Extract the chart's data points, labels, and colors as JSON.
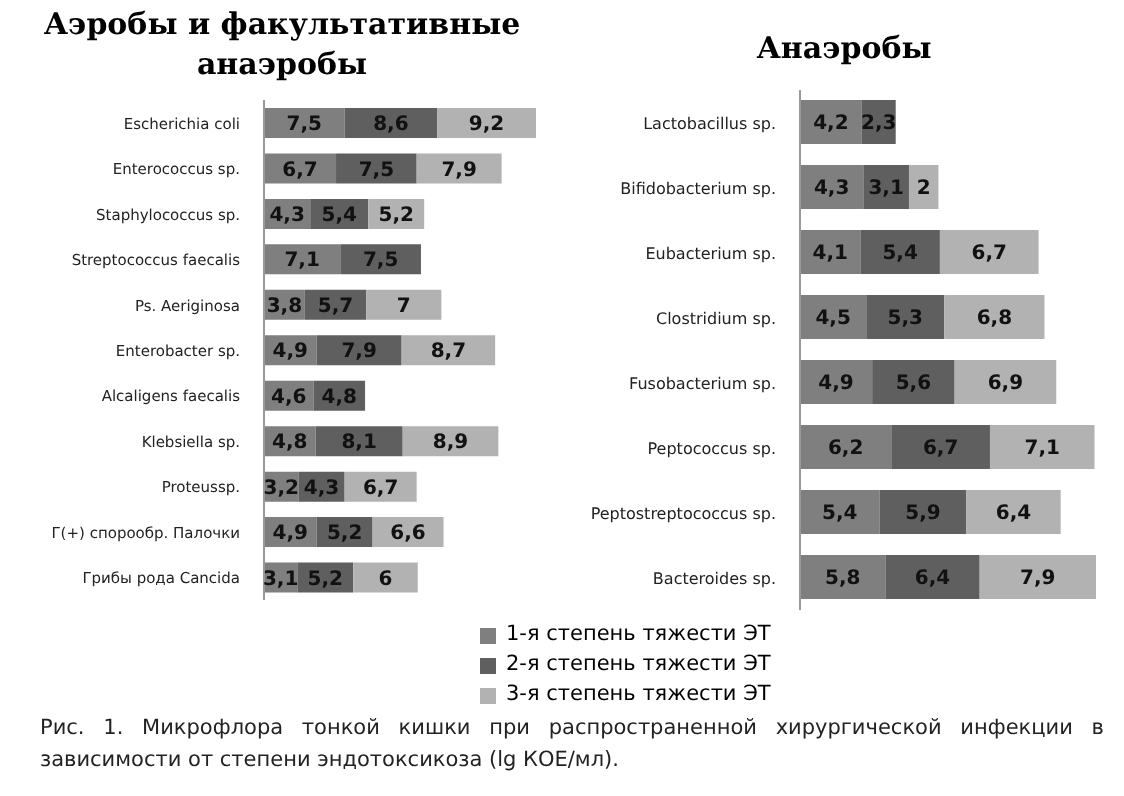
{
  "chart_data": [
    {
      "type": "bar",
      "orientation": "horizontal",
      "stacked": true,
      "title": "Аэробы и факультативные анаэробы",
      "categories": [
        "Escherichia coli",
        "Enterococcus sp.",
        "Staphylococcus sp.",
        "Streptococcus faecalis",
        "Ps. Aeriginosa",
        "Enterobacter sp.",
        "Alcaligens faecalis",
        "Klebsiella sp.",
        "Proteussp.",
        "Г(+) спорообр. Палочки",
        "Грибы рода Cancida"
      ],
      "tick_labels": "y",
      "legend": false,
      "series": [
        {
          "color": "#7f7f7f",
          "values": [
            7.5,
            6.7,
            4.3,
            7.1,
            3.8,
            4.9,
            4.6,
            4.8,
            3.2,
            4.9,
            3.1
          ],
          "value_labels": [
            "7,5",
            "6,7",
            "4,3",
            "7,1",
            "3,8",
            "4,9",
            "4,6",
            "4,8",
            "3,2",
            "4,9",
            "3,1"
          ]
        },
        {
          "color": "#5f5f5f",
          "values": [
            8.6,
            7.5,
            5.4,
            7.5,
            5.7,
            7.9,
            4.8,
            8.1,
            4.3,
            5.2,
            5.2
          ],
          "value_labels": [
            "8,6",
            "7,5",
            "5,4",
            "7,5",
            "5,7",
            "7,9",
            "4,8",
            "8,1",
            "4,3",
            "5,2",
            "5,2"
          ]
        },
        {
          "color": "#b2b2b2",
          "values": [
            9.2,
            7.9,
            5.2,
            null,
            7,
            8.7,
            null,
            8.9,
            6.7,
            6.6,
            6
          ],
          "value_labels": [
            "9,2",
            "7,9",
            "5,2",
            null,
            "7",
            "8,7",
            null,
            "8,9",
            "6,7",
            "6,6",
            "6"
          ]
        }
      ]
    },
    {
      "type": "bar",
      "orientation": "horizontal",
      "stacked": true,
      "title": "Анаэробы",
      "categories": [
        "Lactobacillus sp.",
        "Bifidobacterium sp.",
        "Eubacterium sp.",
        "Clostridium sp.",
        "Fusobacterium sp.",
        "Peptococcus sp.",
        "Peptostreptococcus sp.",
        "Bacteroides sp."
      ],
      "tick_labels": "y",
      "legend": "bottom",
      "series": [
        {
          "name": "1-я степень тяжести ЭТ",
          "color": "#7f7f7f",
          "values": [
            4.2,
            4.3,
            4.1,
            4.5,
            4.9,
            6.2,
            5.4,
            5.8
          ],
          "value_labels": [
            "4,2",
            "4,3",
            "4,1",
            "4,5",
            "4,9",
            "6,2",
            "5,4",
            "5,8"
          ]
        },
        {
          "name": "2-я степень тяжести ЭТ",
          "color": "#5f5f5f",
          "values": [
            2.3,
            3.1,
            5.4,
            5.3,
            5.6,
            6.7,
            5.9,
            6.4
          ],
          "value_labels": [
            "2,3",
            "3,1",
            "5,4",
            "5,3",
            "5,6",
            "6,7",
            "5,9",
            "6,4"
          ]
        },
        {
          "name": "3-я степень тяжести ЭТ",
          "color": "#b2b2b2",
          "values": [
            null,
            2,
            6.7,
            6.8,
            6.9,
            7.1,
            6.4,
            7.9
          ],
          "value_labels": [
            null,
            "2",
            "6,7",
            "6,8",
            "6,9",
            "7,1",
            "6,4",
            "7,9"
          ]
        }
      ],
      "annotations": [
        "Рис. 1. Микрофлора тонкой кишки при распространенной хирургической инфекции в зависимости от степени эндотоксикоза (lg КОЕ/мл)."
      ]
    }
  ]
}
